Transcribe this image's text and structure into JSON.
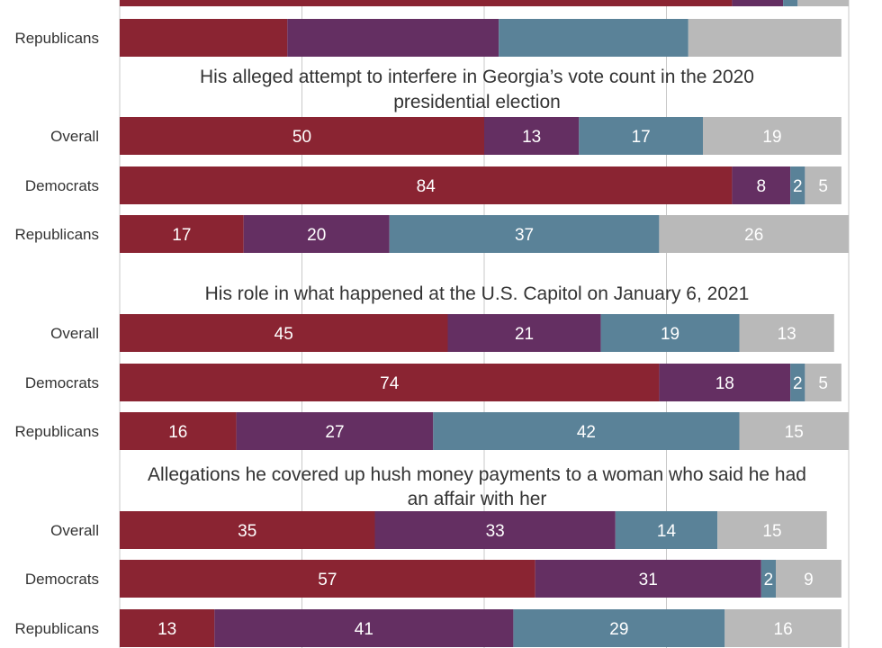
{
  "colors": {
    "segments": [
      "#8a2432",
      "#642f62",
      "#5a8298",
      "#b9b9b9"
    ],
    "grid": "#c8c8c8",
    "text": "#333333",
    "label": "#ffffff"
  },
  "chart_data": {
    "type": "bar",
    "orientation": "horizontal",
    "stacked": true,
    "xlim": [
      0,
      100
    ],
    "grid": true,
    "series_count": 4,
    "groups": [
      {
        "title": "",
        "partial": true,
        "rows": [
          {
            "label": "",
            "values": [
              84,
              7,
              2,
              7
            ]
          },
          {
            "label": "Republicans",
            "values": [
              23,
              29,
              26,
              21
            ]
          }
        ]
      },
      {
        "title": "His alleged attempt to interfere in Georgia’s vote count in the 2020 presidential election",
        "title_lines": [
          "His alleged attempt to interfere in Georgia’s vote count in the 2020",
          "presidential election"
        ],
        "rows": [
          {
            "label": "Overall",
            "values": [
              50,
              13,
              17,
              19
            ]
          },
          {
            "label": "Democrats",
            "values": [
              84,
              8,
              2,
              5
            ]
          },
          {
            "label": "Republicans",
            "values": [
              17,
              20,
              37,
              26
            ]
          }
        ]
      },
      {
        "title": "His role in what happened at the U.S. Capitol on January 6, 2021",
        "title_lines": [
          "His role in what happened at the U.S. Capitol on January 6, 2021"
        ],
        "rows": [
          {
            "label": "Overall",
            "values": [
              45,
              21,
              19,
              13
            ]
          },
          {
            "label": "Democrats",
            "values": [
              74,
              18,
              2,
              5
            ]
          },
          {
            "label": "Republicans",
            "values": [
              16,
              27,
              42,
              15
            ]
          }
        ]
      },
      {
        "title": "Allegations he covered up hush money payments to a woman who said he had an affair with her",
        "title_lines": [
          "Allegations he covered up hush money payments to a woman who said he had",
          "an affair with her"
        ],
        "rows": [
          {
            "label": "Overall",
            "values": [
              35,
              33,
              14,
              15
            ]
          },
          {
            "label": "Democrats",
            "values": [
              57,
              31,
              2,
              9
            ]
          },
          {
            "label": "Republicans",
            "values": [
              13,
              41,
              29,
              16
            ]
          }
        ]
      }
    ]
  }
}
